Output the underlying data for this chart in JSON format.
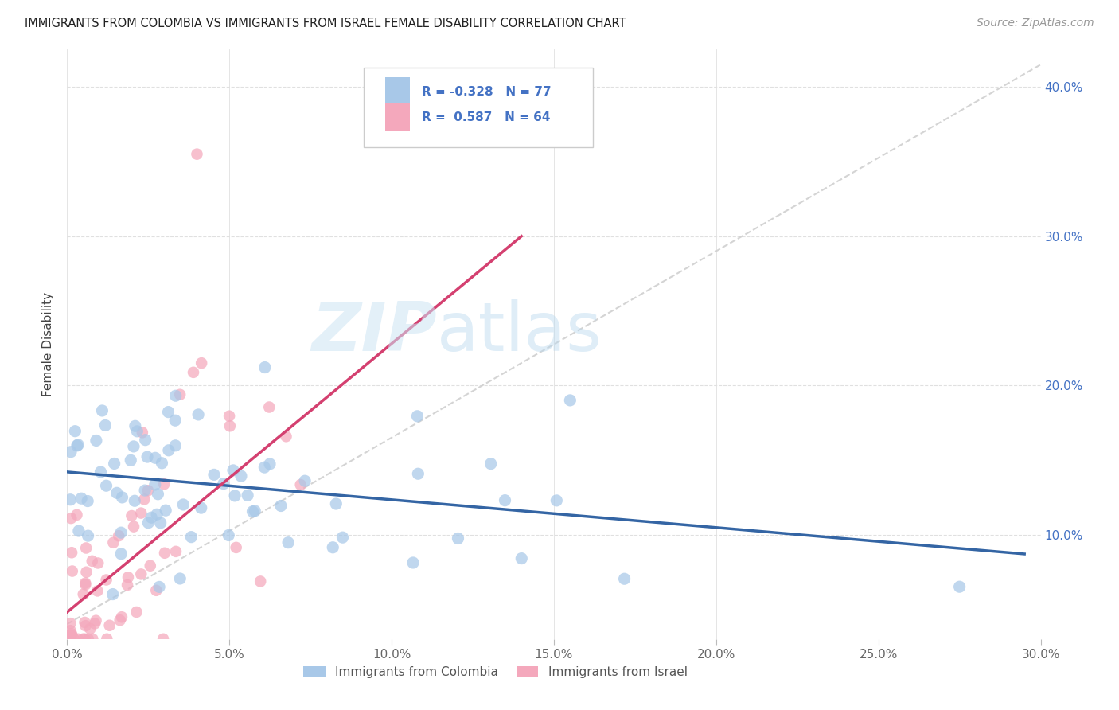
{
  "title": "IMMIGRANTS FROM COLOMBIA VS IMMIGRANTS FROM ISRAEL FEMALE DISABILITY CORRELATION CHART",
  "source": "Source: ZipAtlas.com",
  "ylabel": "Female Disability",
  "xlim": [
    0.0,
    0.3
  ],
  "ylim": [
    0.03,
    0.425
  ],
  "xticks": [
    0.0,
    0.05,
    0.1,
    0.15,
    0.2,
    0.25,
    0.3
  ],
  "xtick_labels": [
    "0.0%",
    "5.0%",
    "10.0%",
    "15.0%",
    "20.0%",
    "25.0%",
    "30.0%"
  ],
  "yticks": [
    0.1,
    0.2,
    0.3,
    0.4
  ],
  "ytick_labels": [
    "10.0%",
    "20.0%",
    "30.0%",
    "40.0%"
  ],
  "colombia_R": -0.328,
  "colombia_N": 77,
  "israel_R": 0.587,
  "israel_N": 64,
  "colombia_color": "#a8c8e8",
  "israel_color": "#f4a8bc",
  "colombia_line_color": "#3465a4",
  "israel_line_color": "#d44070",
  "ref_line_color": "#d0d0d0",
  "background_color": "#ffffff",
  "watermark_zip": "ZIP",
  "watermark_atlas": "atlas",
  "grid_color": "#e0e0e0",
  "grid_style": "--",
  "colombia_line_x": [
    0.0,
    0.295
  ],
  "colombia_line_y": [
    0.142,
    0.087
  ],
  "israel_line_x": [
    0.0,
    0.14
  ],
  "israel_line_y": [
    0.048,
    0.3
  ],
  "ref_line_x": [
    0.0,
    0.3
  ],
  "ref_line_y": [
    0.04,
    0.415
  ]
}
